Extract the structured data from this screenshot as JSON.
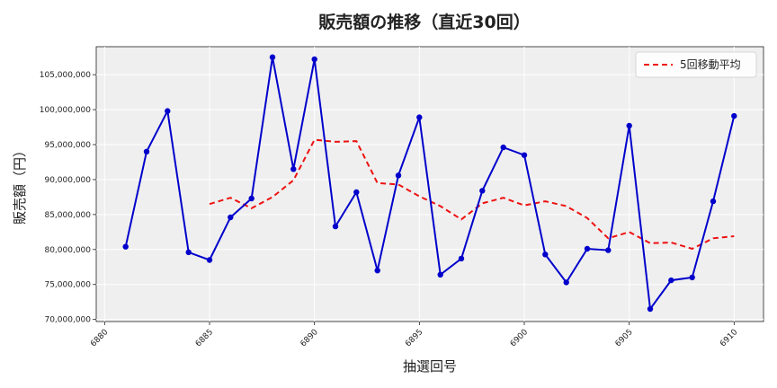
{
  "chart_data": {
    "type": "line",
    "title": "販売額の推移（直近30回）",
    "xlabel": "抽選回号",
    "ylabel": "販売額（円）",
    "xlim": [
      6879.6,
      6911.4
    ],
    "ylim": [
      69700000,
      109000000
    ],
    "xticks": [
      6880,
      6885,
      6890,
      6895,
      6900,
      6905,
      6910
    ],
    "yticks": [
      70000000,
      75000000,
      80000000,
      85000000,
      90000000,
      95000000,
      100000000,
      105000000
    ],
    "ytick_labels": [
      "70,000,000",
      "75,000,000",
      "80,000,000",
      "85,000,000",
      "90,000,000",
      "95,000,000",
      "100,000,000",
      "105,000,000"
    ],
    "grid": true,
    "legend_position": "top-right",
    "colors": {
      "sales": "#0000cc",
      "ma": "#ee1111",
      "plot_bg": "#efefef",
      "grid": "#ffffff"
    },
    "series": [
      {
        "key": "sales",
        "x": [
          6881,
          6882,
          6883,
          6884,
          6885,
          6886,
          6887,
          6888,
          6889,
          6890,
          6891,
          6892,
          6893,
          6894,
          6895,
          6896,
          6897,
          6898,
          6899,
          6900,
          6901,
          6902,
          6903,
          6904,
          6905,
          6906,
          6907,
          6908,
          6909,
          6910
        ],
        "values": [
          80400000,
          94000000,
          99800000,
          79600000,
          78500000,
          84600000,
          87300000,
          107500000,
          91500000,
          107200000,
          83300000,
          88200000,
          77000000,
          90600000,
          98900000,
          76400000,
          78700000,
          88400000,
          94600000,
          93500000,
          79300000,
          75300000,
          80100000,
          79900000,
          97700000,
          71500000,
          75600000,
          76000000,
          86900000,
          99100000
        ]
      },
      {
        "key": "ma",
        "name": "5回移動平均",
        "x": [
          6885,
          6886,
          6887,
          6888,
          6889,
          6890,
          6891,
          6892,
          6893,
          6894,
          6895,
          6896,
          6897,
          6898,
          6899,
          6900,
          6901,
          6902,
          6903,
          6904,
          6905,
          6906,
          6907,
          6908,
          6909,
          6910
        ],
        "values": [
          86500000,
          87400000,
          85900000,
          87500000,
          89900000,
          95700000,
          95400000,
          95500000,
          89500000,
          89300000,
          87600000,
          86200000,
          84300000,
          86600000,
          87400000,
          86300000,
          86900000,
          86200000,
          84500000,
          81600000,
          82500000,
          80900000,
          81000000,
          80100000,
          81600000,
          81900000
        ]
      }
    ]
  }
}
